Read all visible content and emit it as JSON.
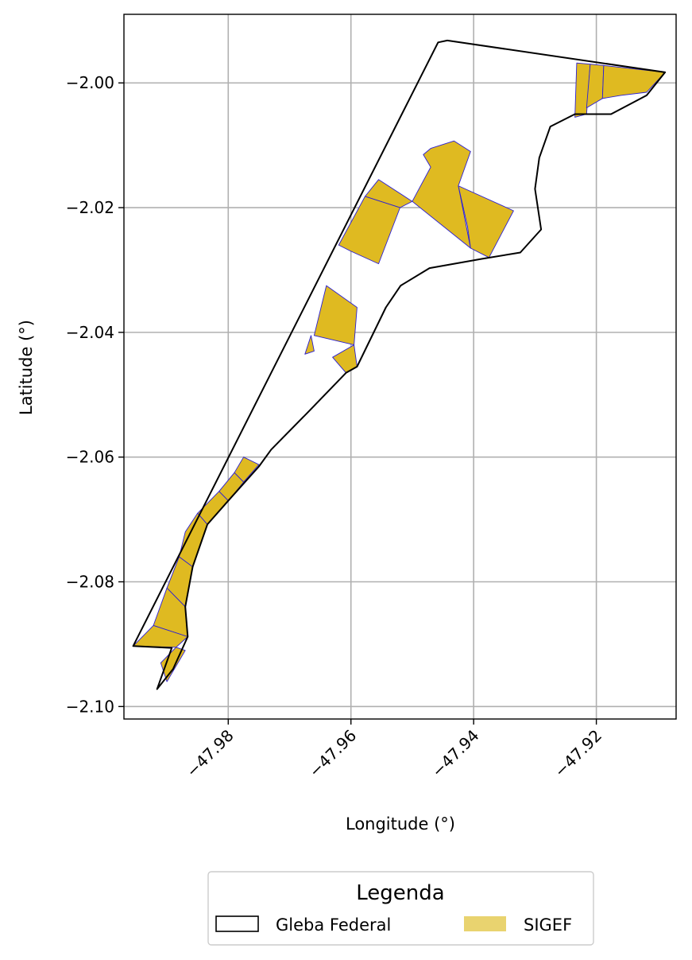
{
  "chart_data": {
    "type": "map",
    "xlabel": "Longitude (°)",
    "ylabel": "Latitude (°)",
    "xlim": [
      -47.997,
      -47.907
    ],
    "ylim": [
      -2.102,
      -1.989
    ],
    "xticks": [
      -47.98,
      -47.96,
      -47.94,
      -47.92
    ],
    "xtick_labels": [
      "−47.98",
      "−47.96",
      "−47.94",
      "−47.92"
    ],
    "yticks": [
      -2.0,
      -2.02,
      -2.04,
      -2.06,
      -2.08,
      -2.1
    ],
    "ytick_labels": [
      "−2.00",
      "−2.02",
      "−2.04",
      "−2.06",
      "−2.08",
      "−2.10"
    ],
    "grid": true,
    "colors": {
      "gleba_edge": "#000000",
      "sigef_fill": "#dfba21",
      "sigef_edge": "#2a1fd6",
      "legend_sigef_patch": "#e9d36f",
      "grid": "#b0b0b0"
    },
    "legend": {
      "title": "Legenda",
      "position": "bottom-center",
      "entries": [
        {
          "label": "Gleba Federal",
          "style": "outline"
        },
        {
          "label": "SIGEF",
          "style": "fill"
        }
      ]
    },
    "gleba_federal": [
      [
        -47.9458,
        -1.9935
      ],
      [
        -47.9443,
        -1.9932
      ],
      [
        -47.9088,
        -1.9983
      ],
      [
        -47.9118,
        -2.002
      ],
      [
        -47.9176,
        -2.005
      ],
      [
        -47.9235,
        -2.005
      ],
      [
        -47.9275,
        -2.007
      ],
      [
        -47.9293,
        -2.012
      ],
      [
        -47.93,
        -2.017
      ],
      [
        -47.929,
        -2.0235
      ],
      [
        -47.9324,
        -2.0272
      ],
      [
        -47.9386,
        -2.0282
      ],
      [
        -47.9472,
        -2.0297
      ],
      [
        -47.9519,
        -2.0325
      ],
      [
        -47.9543,
        -2.036
      ],
      [
        -47.959,
        -2.0455
      ],
      [
        -47.9608,
        -2.0465
      ],
      [
        -47.967,
        -2.0528
      ],
      [
        -47.973,
        -2.0588
      ],
      [
        -47.975,
        -2.0615
      ],
      [
        -47.98,
        -2.067
      ],
      [
        -47.9834,
        -2.0708
      ],
      [
        -47.9858,
        -2.0776
      ],
      [
        -47.987,
        -2.084
      ],
      [
        -47.9866,
        -2.0888
      ],
      [
        -47.989,
        -2.094
      ],
      [
        -47.9916,
        -2.0972
      ],
      [
        -47.9892,
        -2.0906
      ],
      [
        -47.9955,
        -2.0903
      ],
      [
        -47.9458,
        -1.9935
      ]
    ],
    "sigef_parcels": [
      [
        [
          -47.9232,
          -1.9968
        ],
        [
          -47.921,
          -1.997
        ],
        [
          -47.9216,
          -2.005
        ],
        [
          -47.9235,
          -2.0055
        ]
      ],
      [
        [
          -47.921,
          -1.997
        ],
        [
          -47.9188,
          -1.9972
        ],
        [
          -47.919,
          -2.0025
        ],
        [
          -47.9216,
          -2.004
        ]
      ],
      [
        [
          -47.9188,
          -1.9972
        ],
        [
          -47.9088,
          -1.9983
        ],
        [
          -47.9118,
          -2.0015
        ],
        [
          -47.916,
          -2.002
        ],
        [
          -47.919,
          -2.0025
        ]
      ],
      [
        [
          -47.947,
          -2.0105
        ],
        [
          -47.9432,
          -2.0093
        ],
        [
          -47.9405,
          -2.011
        ],
        [
          -47.9425,
          -2.0165
        ],
        [
          -47.9405,
          -2.0265
        ],
        [
          -47.95,
          -2.019
        ],
        [
          -47.947,
          -2.0135
        ],
        [
          -47.9482,
          -2.0115
        ]
      ],
      [
        [
          -47.9425,
          -2.0165
        ],
        [
          -47.9335,
          -2.0205
        ],
        [
          -47.9375,
          -2.028
        ],
        [
          -47.9405,
          -2.0265
        ],
        [
          -47.941,
          -2.023
        ]
      ],
      [
        [
          -47.9555,
          -2.0155
        ],
        [
          -47.95,
          -2.019
        ],
        [
          -47.952,
          -2.02
        ],
        [
          -47.9577,
          -2.0182
        ]
      ],
      [
        [
          -47.9577,
          -2.0182
        ],
        [
          -47.952,
          -2.02
        ],
        [
          -47.9555,
          -2.029
        ],
        [
          -47.96,
          -2.027
        ],
        [
          -47.962,
          -2.026
        ]
      ],
      [
        [
          -47.964,
          -2.0325
        ],
        [
          -47.959,
          -2.036
        ],
        [
          -47.9595,
          -2.042
        ],
        [
          -47.966,
          -2.0405
        ]
      ],
      [
        [
          -47.9595,
          -2.042
        ],
        [
          -47.959,
          -2.0455
        ],
        [
          -47.9608,
          -2.0465
        ],
        [
          -47.963,
          -2.044
        ]
      ],
      [
        [
          -47.9665,
          -2.0405
        ],
        [
          -47.966,
          -2.043
        ],
        [
          -47.9675,
          -2.0435
        ]
      ],
      [
        [
          -47.9775,
          -2.06
        ],
        [
          -47.975,
          -2.0612
        ],
        [
          -47.9775,
          -2.064
        ],
        [
          -47.979,
          -2.0625
        ]
      ],
      [
        [
          -47.979,
          -2.0625
        ],
        [
          -47.9775,
          -2.064
        ],
        [
          -47.98,
          -2.067
        ],
        [
          -47.9815,
          -2.0655
        ]
      ],
      [
        [
          -47.9815,
          -2.0655
        ],
        [
          -47.98,
          -2.067
        ],
        [
          -47.9834,
          -2.0708
        ],
        [
          -47.985,
          -2.069
        ]
      ],
      [
        [
          -47.985,
          -2.069
        ],
        [
          -47.9834,
          -2.0708
        ],
        [
          -47.9858,
          -2.0776
        ],
        [
          -47.988,
          -2.076
        ],
        [
          -47.987,
          -2.072
        ]
      ],
      [
        [
          -47.988,
          -2.076
        ],
        [
          -47.9858,
          -2.0776
        ],
        [
          -47.987,
          -2.084
        ],
        [
          -47.99,
          -2.081
        ]
      ],
      [
        [
          -47.99,
          -2.081
        ],
        [
          -47.987,
          -2.084
        ],
        [
          -47.9866,
          -2.0888
        ],
        [
          -47.9922,
          -2.087
        ]
      ],
      [
        [
          -47.9922,
          -2.087
        ],
        [
          -47.9866,
          -2.0888
        ],
        [
          -47.9885,
          -2.0905
        ],
        [
          -47.9955,
          -2.0903
        ]
      ],
      [
        [
          -47.9885,
          -2.0905
        ],
        [
          -47.987,
          -2.091
        ],
        [
          -47.99,
          -2.096
        ],
        [
          -47.991,
          -2.093
        ]
      ]
    ]
  }
}
